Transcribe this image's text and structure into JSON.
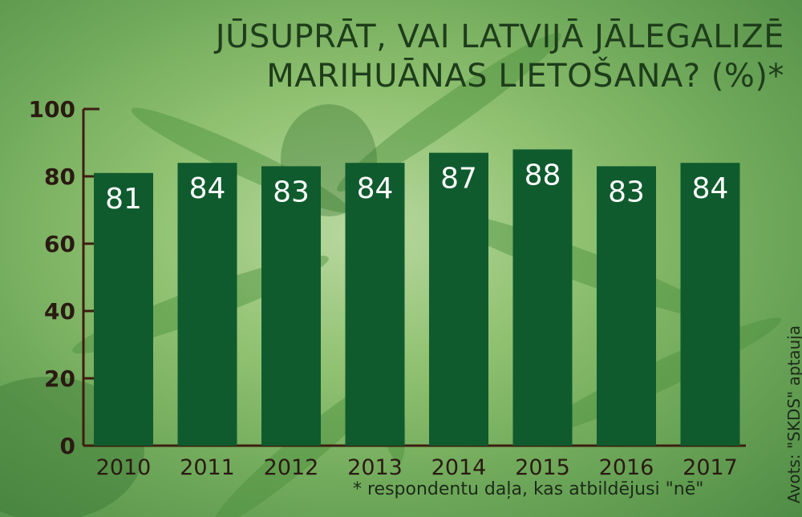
{
  "title_line1": "JŪSUPRĀT, VAI LATVIJĀ JĀLEGALIZĒ",
  "title_line2": "MARIHUĀNAS LIETOŠANA? (%)*",
  "footnote": "* respondentu daļa, kas atbildējusi \"nē\"",
  "source": "Avots: \"SKDS\" aptauja",
  "colors": {
    "bar": "#0f5b2e",
    "axis": "#3d1d10",
    "label": "#ffffff",
    "tick_text": "#2a1a12"
  },
  "chart_data": {
    "type": "bar",
    "categories": [
      "2010",
      "2011",
      "2012",
      "2013",
      "2014",
      "2015",
      "2016",
      "2017"
    ],
    "values": [
      81,
      84,
      83,
      84,
      87,
      88,
      83,
      84
    ],
    "title": "JŪSUPRĀT, VAI LATVIJĀ JĀLEGALIZĒ MARIHUĀNAS LIETOŠANA? (%)*",
    "xlabel": "",
    "ylabel": "",
    "ylim": [
      0,
      100
    ],
    "yticks": [
      0,
      20,
      40,
      60,
      80,
      100
    ],
    "grid": false,
    "legend": "none"
  }
}
